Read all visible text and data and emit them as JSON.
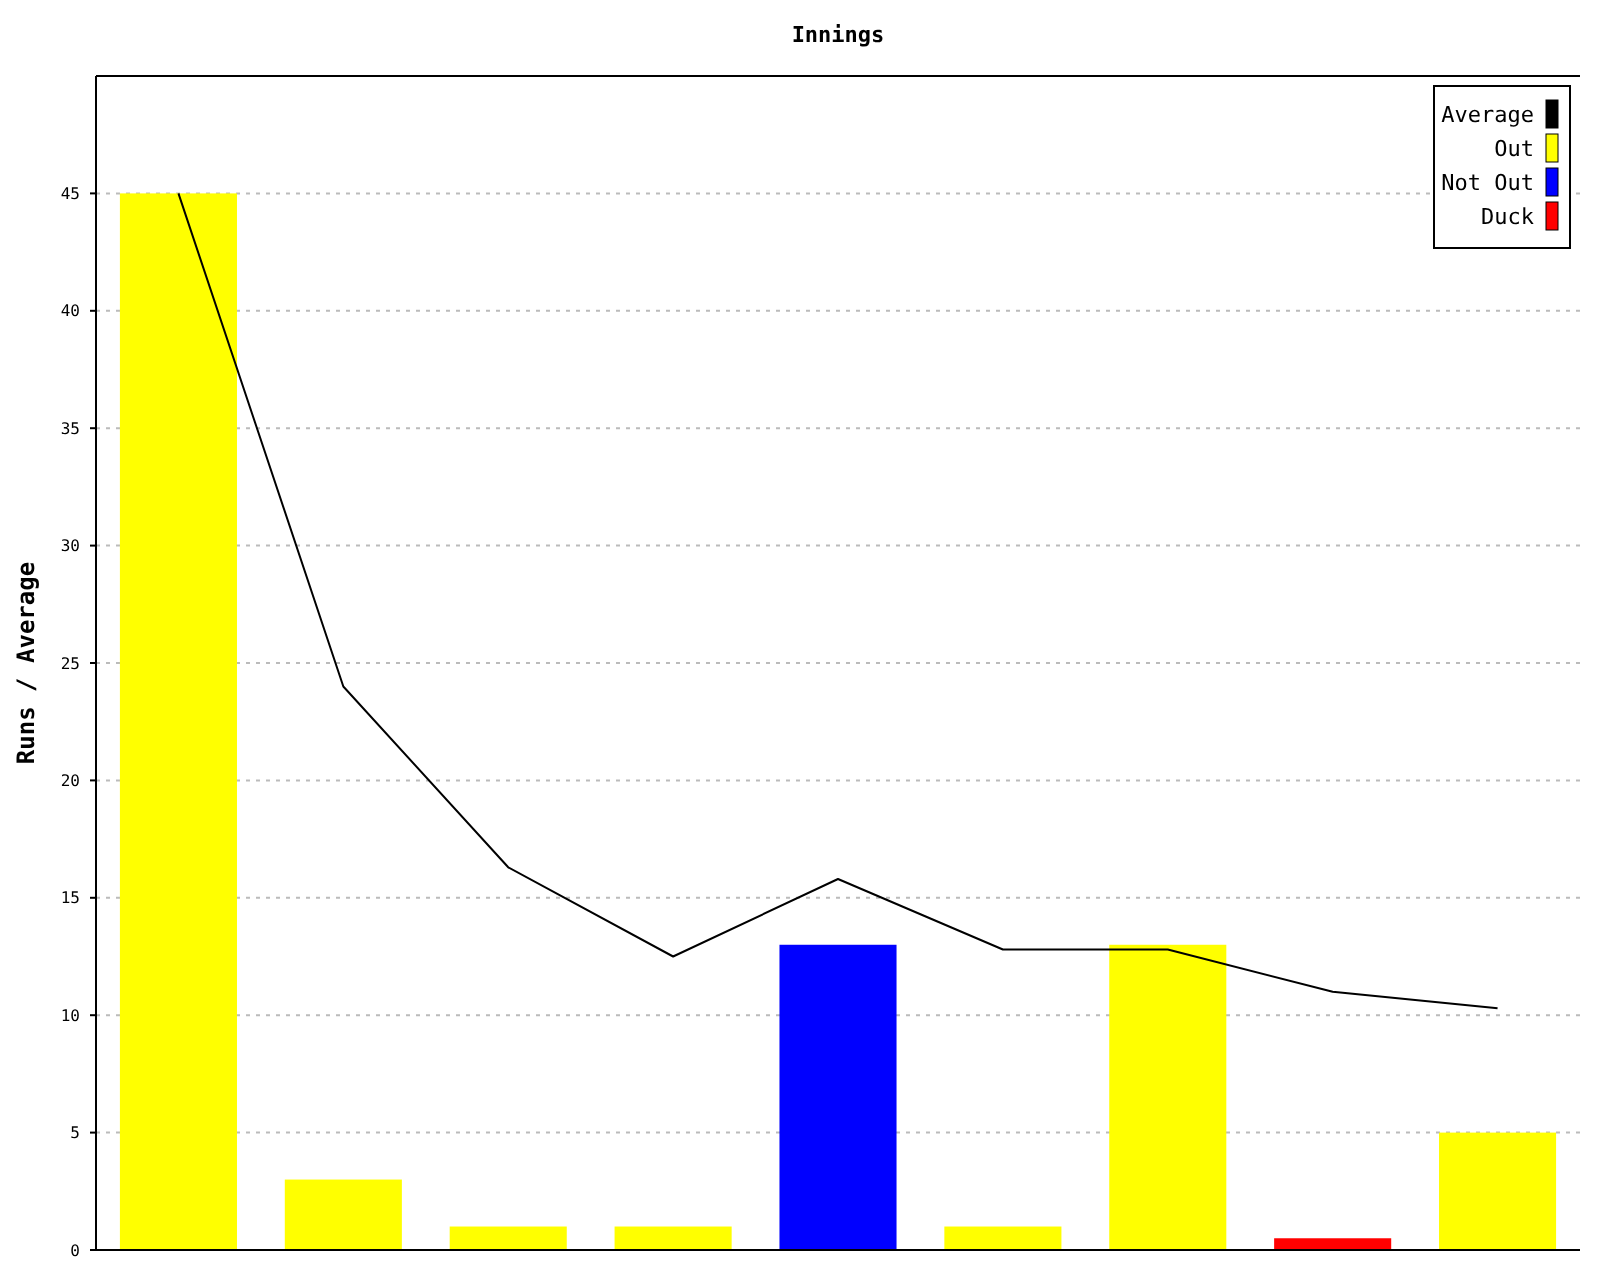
{
  "chart_data": {
    "type": "bar",
    "title": "Innings",
    "ylabel": "Runs / Average",
    "categories": [
      null,
      null,
      null,
      null,
      null,
      null,
      null,
      null,
      null
    ],
    "series": [
      {
        "name": "Average",
        "type": "line",
        "color": "#000000",
        "values": [
          45,
          24,
          16.3,
          12.5,
          15.8,
          12.8,
          12.8,
          11,
          10.3
        ]
      },
      {
        "name": "Out",
        "color": "#ffff00",
        "values": [
          45,
          3,
          1,
          1,
          null,
          1,
          13,
          null,
          5
        ]
      },
      {
        "name": "Not Out",
        "color": "#0000ff",
        "values": [
          null,
          null,
          null,
          null,
          13,
          null,
          null,
          null,
          null
        ]
      },
      {
        "name": "Duck",
        "color": "#ff0000",
        "values": [
          null,
          null,
          null,
          null,
          null,
          null,
          null,
          0.5,
          null
        ]
      }
    ],
    "ylim": [
      0,
      50
    ],
    "yticks": [
      0,
      5,
      10,
      15,
      20,
      25,
      30,
      35,
      40,
      45
    ],
    "grid": "y",
    "legend": "top right"
  }
}
